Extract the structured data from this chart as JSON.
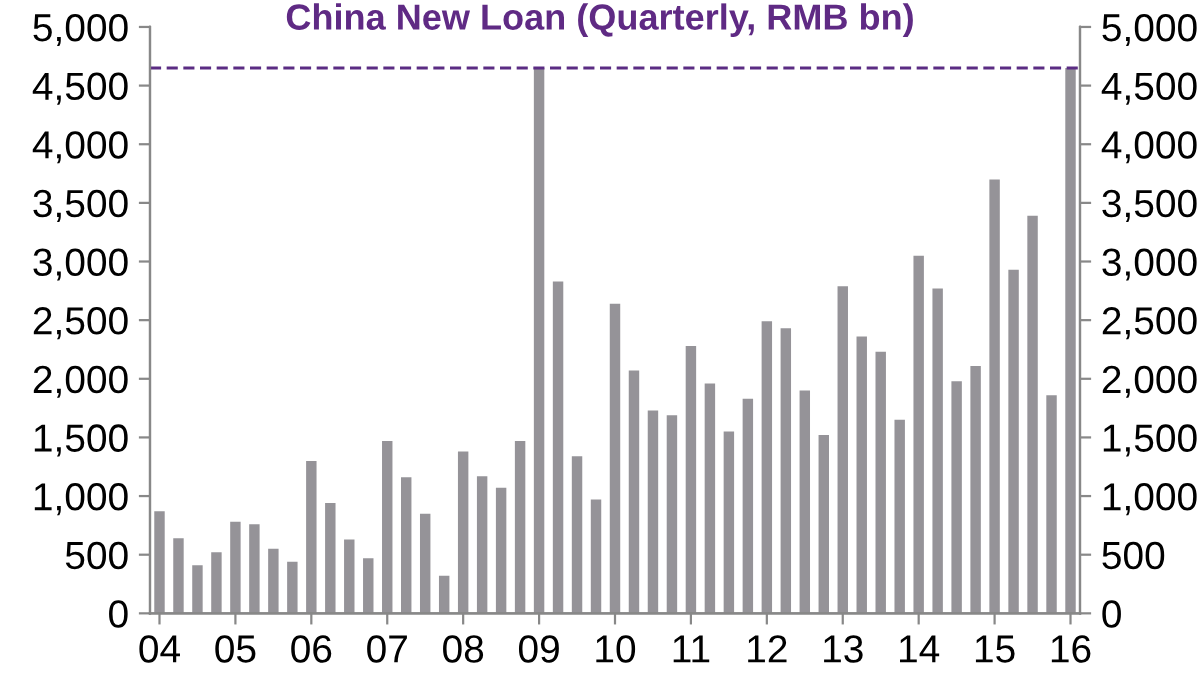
{
  "chart_data": {
    "type": "bar",
    "title": "China New Loan (Quarterly, RMB bn)",
    "categories": [
      "04",
      null,
      null,
      null,
      "05",
      null,
      null,
      null,
      "06",
      null,
      null,
      null,
      "07",
      null,
      null,
      null,
      "08",
      null,
      null,
      null,
      "09",
      null,
      null,
      null,
      "10",
      null,
      null,
      null,
      "11",
      null,
      null,
      null,
      "12",
      null,
      null,
      null,
      "13",
      null,
      null,
      null,
      "14",
      null,
      null,
      null,
      "15",
      null,
      null,
      null,
      "16"
    ],
    "series": [
      {
        "color": "#959398",
        "values": [
          870,
          640,
          410,
          520,
          780,
          760,
          550,
          440,
          1300,
          940,
          630,
          470,
          1470,
          1160,
          850,
          320,
          1380,
          1170,
          1070,
          1470,
          4650,
          2830,
          1340,
          970,
          2640,
          2070,
          1730,
          1690,
          2280,
          1960,
          1550,
          1830,
          2490,
          2430,
          1900,
          1520,
          2790,
          2360,
          2230,
          1650,
          3050,
          2770,
          1980,
          2110,
          3700,
          2930,
          3390,
          1860,
          4650
        ]
      }
    ],
    "ylim": [
      0,
      5000
    ],
    "yticks": [
      {
        "value": 0,
        "label": "0"
      },
      {
        "value": 500,
        "label": "500"
      },
      {
        "value": 1000,
        "label": "1,000"
      },
      {
        "value": 1500,
        "label": "1,500"
      },
      {
        "value": 2000,
        "label": "2,000"
      },
      {
        "value": 2500,
        "label": "2,500"
      },
      {
        "value": 3000,
        "label": "3,000"
      },
      {
        "value": 3500,
        "label": "3,500"
      },
      {
        "value": 4000,
        "label": "4,000"
      },
      {
        "value": 4500,
        "label": "4,500"
      },
      {
        "value": 5000,
        "label": "5,000"
      }
    ],
    "y2lim": [
      0,
      5000
    ],
    "y2ticks": [
      {
        "value": 0,
        "label": "0"
      },
      {
        "value": 500,
        "label": "500"
      },
      {
        "value": 1000,
        "label": "1,000"
      },
      {
        "value": 1500,
        "label": "1,500"
      },
      {
        "value": 2000,
        "label": "2,000"
      },
      {
        "value": 2500,
        "label": "2,500"
      },
      {
        "value": 3000,
        "label": "3,000"
      },
      {
        "value": 3500,
        "label": "3,500"
      },
      {
        "value": 4000,
        "label": "4,000"
      },
      {
        "value": 4500,
        "label": "4,500"
      },
      {
        "value": 5000,
        "label": "5,000"
      }
    ],
    "ref_lines": [
      {
        "axis": "y",
        "value": 4650,
        "color": "#5b2c83",
        "line_style": "dashed"
      }
    ],
    "grid": false,
    "legend": false
  }
}
